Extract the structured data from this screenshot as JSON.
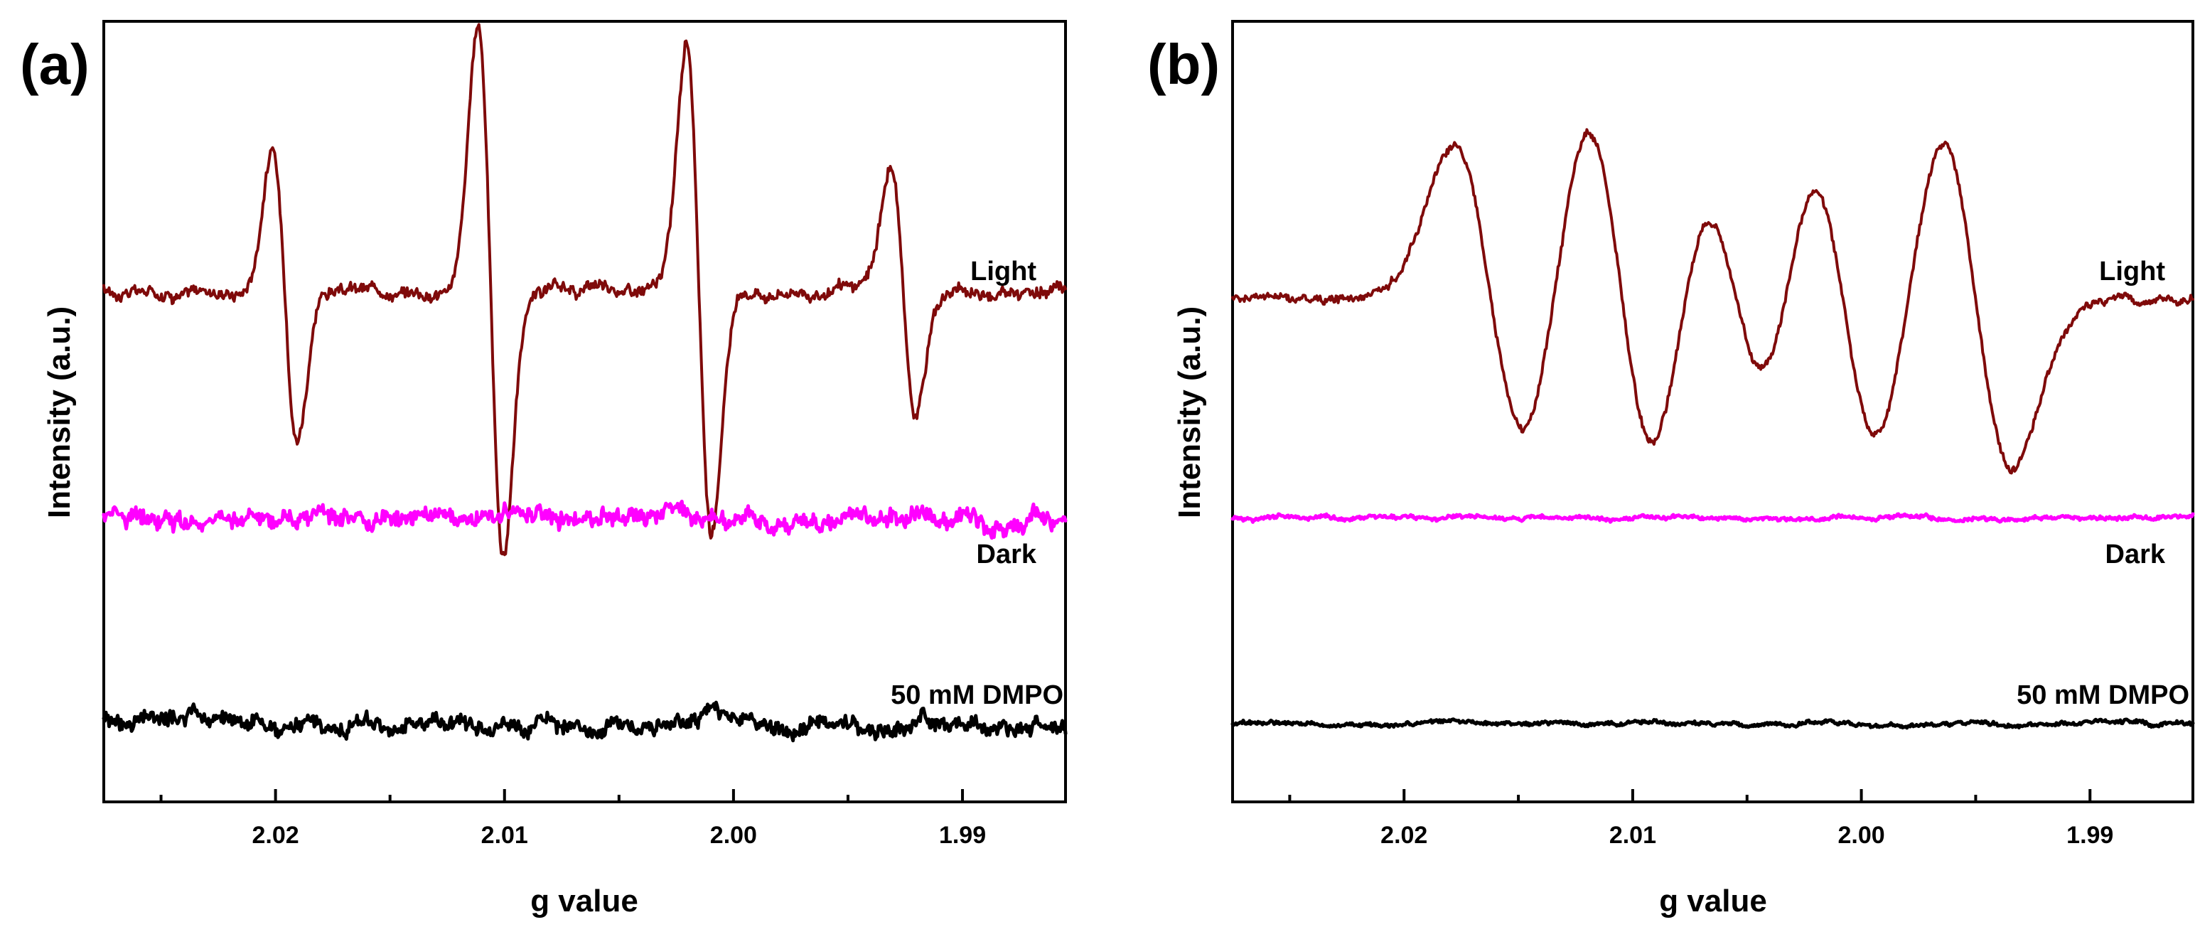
{
  "chart_data": [
    {
      "type": "line",
      "panel_label": "(a)",
      "xlabel": "g value",
      "ylabel": "Intensity (a.u.)",
      "xlim": [
        2.0275,
        1.9855
      ],
      "xticks": [
        2.02,
        2.01,
        2.0,
        1.99
      ],
      "xtick_labels": [
        "2.02",
        "2.01",
        "2.00",
        "1.99"
      ],
      "yticks": "none",
      "grid": false,
      "series": [
        {
          "name": "Light",
          "color": "#7f0a0a",
          "baseline": 7.2,
          "noise": 0.12,
          "peaks": [
            {
              "g": 2.0196,
              "amp": 2.0,
              "width": 0.00055
            },
            {
              "g": 2.0106,
              "amp": 3.7,
              "width": 0.00055
            },
            {
              "g": 2.0015,
              "amp": 3.5,
              "width": 0.00055
            },
            {
              "g": 1.9926,
              "amp": 1.7,
              "width": 0.00055
            }
          ]
        },
        {
          "name": "Dark",
          "color": "#ff00ff",
          "baseline": 4.0,
          "noise": 0.18,
          "peaks": []
        },
        {
          "name": "50 mM DMPO",
          "color": "#000000",
          "baseline": 1.1,
          "noise": 0.16,
          "peaks": []
        }
      ]
    },
    {
      "type": "line",
      "panel_label": "(b)",
      "xlabel": "g value",
      "ylabel": "Intensity (a.u.)",
      "xlim": [
        2.0275,
        1.9855
      ],
      "xticks": [
        2.02,
        2.01,
        2.0,
        1.99
      ],
      "xtick_labels": [
        "2.02",
        "2.01",
        "2.00",
        "1.99"
      ],
      "yticks": "none",
      "grid": false,
      "series": [
        {
          "name": "Light",
          "color": "#7f0a0a",
          "baseline": 7.1,
          "noise": 0.08,
          "peaks": [
            {
              "g": 2.0162,
              "amp": 2.2,
              "width": 0.0016
            },
            {
              "g": 2.0105,
              "amp": 2.6,
              "width": 0.0016
            },
            {
              "g": 2.0055,
              "amp": 1.8,
              "width": 0.0016
            },
            {
              "g": 2.0008,
              "amp": 2.2,
              "width": 0.0016
            },
            {
              "g": 1.995,
              "amp": 2.4,
              "width": 0.0016
            }
          ]
        },
        {
          "name": "Dark",
          "color": "#ff00ff",
          "baseline": 4.0,
          "noise": 0.04,
          "peaks": []
        },
        {
          "name": "50 mM DMPO",
          "color": "#000000",
          "baseline": 1.1,
          "noise": 0.04,
          "peaks": []
        }
      ]
    }
  ]
}
